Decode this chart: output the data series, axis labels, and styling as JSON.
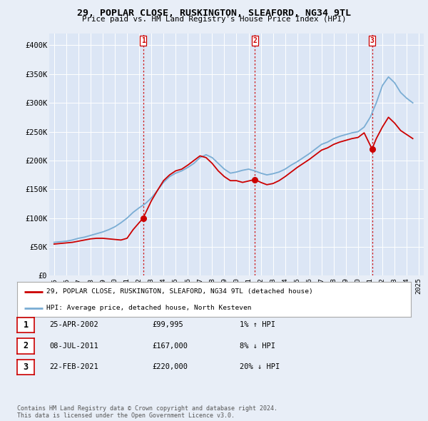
{
  "title": "29, POPLAR CLOSE, RUSKINGTON, SLEAFORD, NG34 9TL",
  "subtitle": "Price paid vs. HM Land Registry's House Price Index (HPI)",
  "background_color": "#e8eef7",
  "plot_bg_color": "#dce6f5",
  "ylim": [
    0,
    420000
  ],
  "yticks": [
    0,
    50000,
    100000,
    150000,
    200000,
    250000,
    300000,
    350000,
    400000
  ],
  "ytick_labels": [
    "£0",
    "£50K",
    "£100K",
    "£150K",
    "£200K",
    "£250K",
    "£300K",
    "£350K",
    "£400K"
  ],
  "xlim_start": 1994.6,
  "xlim_end": 2025.4,
  "sale_dates": [
    2002.32,
    2011.52,
    2021.15
  ],
  "sale_prices": [
    99995,
    167000,
    220000
  ],
  "sale_labels": [
    "1",
    "2",
    "3"
  ],
  "red_line_color": "#cc0000",
  "blue_line_color": "#7aadd4",
  "vline_color": "#cc0000",
  "legend_label_red": "29, POPLAR CLOSE, RUSKINGTON, SLEAFORD, NG34 9TL (detached house)",
  "legend_label_blue": "HPI: Average price, detached house, North Kesteven",
  "table_entries": [
    {
      "num": "1",
      "date": "25-APR-2002",
      "price": "£99,995",
      "hpi": "1% ↑ HPI"
    },
    {
      "num": "2",
      "date": "08-JUL-2011",
      "price": "£167,000",
      "hpi": "8% ↓ HPI"
    },
    {
      "num": "3",
      "date": "22-FEB-2021",
      "price": "£220,000",
      "hpi": "20% ↓ HPI"
    }
  ],
  "footer": "Contains HM Land Registry data © Crown copyright and database right 2024.\nThis data is licensed under the Open Government Licence v3.0.",
  "hpi_years": [
    1995,
    1995.5,
    1996,
    1996.5,
    1997,
    1997.5,
    1998,
    1998.5,
    1999,
    1999.5,
    2000,
    2000.5,
    2001,
    2001.5,
    2002,
    2002.5,
    2003,
    2003.5,
    2004,
    2004.5,
    2005,
    2005.5,
    2006,
    2006.5,
    2007,
    2007.5,
    2008,
    2008.5,
    2009,
    2009.5,
    2010,
    2010.5,
    2011,
    2011.5,
    2012,
    2012.5,
    2013,
    2013.5,
    2014,
    2014.5,
    2015,
    2015.5,
    2016,
    2016.5,
    2017,
    2017.5,
    2018,
    2018.5,
    2019,
    2019.5,
    2020,
    2020.5,
    2021,
    2021.5,
    2022,
    2022.5,
    2023,
    2023.5,
    2024,
    2024.5
  ],
  "hpi_values": [
    58000,
    59000,
    60000,
    62000,
    65000,
    67000,
    70000,
    73000,
    76000,
    80000,
    85000,
    92000,
    100000,
    110000,
    118000,
    125000,
    135000,
    148000,
    162000,
    172000,
    178000,
    182000,
    188000,
    195000,
    205000,
    210000,
    205000,
    195000,
    185000,
    178000,
    180000,
    183000,
    185000,
    182000,
    178000,
    175000,
    177000,
    180000,
    185000,
    192000,
    198000,
    205000,
    212000,
    220000,
    228000,
    232000,
    238000,
    242000,
    245000,
    248000,
    250000,
    258000,
    275000,
    300000,
    330000,
    345000,
    335000,
    318000,
    308000,
    300000
  ],
  "red_years": [
    1995,
    1995.5,
    1996,
    1996.5,
    1997,
    1997.5,
    1998,
    1998.5,
    1999,
    1999.5,
    2000,
    2000.5,
    2001,
    2001.5,
    2002.32,
    2002.32,
    2003,
    2003.5,
    2004,
    2004.5,
    2005,
    2005.5,
    2006,
    2006.5,
    2007,
    2007.5,
    2008,
    2008.5,
    2009,
    2009.5,
    2010,
    2010.5,
    2011.52,
    2011.52,
    2012,
    2012.5,
    2013,
    2013.5,
    2014,
    2014.5,
    2015,
    2015.5,
    2016,
    2016.5,
    2017,
    2017.5,
    2018,
    2018.5,
    2019,
    2019.5,
    2020,
    2020.5,
    2021.15,
    2021.15,
    2021.5,
    2022,
    2022.5,
    2023,
    2023.5,
    2024,
    2024.5
  ],
  "red_values": [
    55000,
    56000,
    57000,
    58000,
    60000,
    62000,
    64000,
    65000,
    65000,
    64000,
    63000,
    62000,
    65000,
    80000,
    99995,
    99995,
    130000,
    148000,
    165000,
    175000,
    182000,
    185000,
    192000,
    200000,
    208000,
    205000,
    195000,
    182000,
    172000,
    165000,
    165000,
    162000,
    167000,
    167000,
    162000,
    158000,
    160000,
    165000,
    172000,
    180000,
    188000,
    195000,
    202000,
    210000,
    218000,
    222000,
    228000,
    232000,
    235000,
    238000,
    240000,
    248000,
    220000,
    220000,
    238000,
    258000,
    275000,
    265000,
    252000,
    245000,
    238000
  ]
}
